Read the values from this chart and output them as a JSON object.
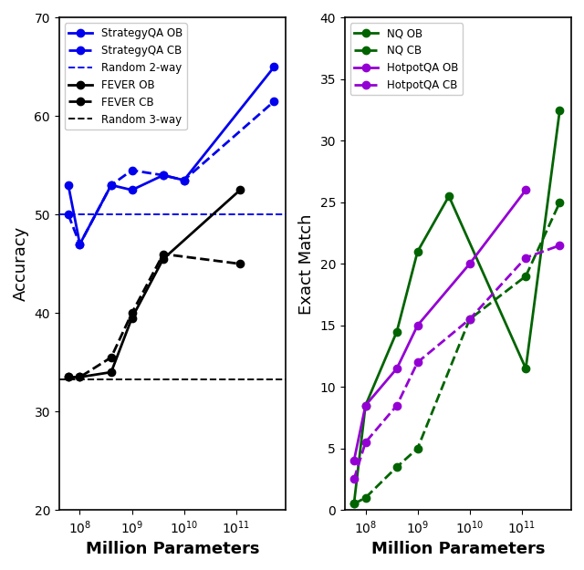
{
  "x_params": [
    60000000.0,
    100000000.0,
    400000000.0,
    1000000000.0,
    4000000000.0,
    10000000000.0,
    120000000000.0,
    540000000000.0
  ],
  "strategyqa_ob": [
    53.0,
    47.0,
    53.0,
    52.5,
    54.0,
    53.5,
    null,
    65.0
  ],
  "strategyqa_cb": [
    50.0,
    47.0,
    53.0,
    54.5,
    54.0,
    53.5,
    null,
    61.5
  ],
  "random_2way": 50.0,
  "fever_ob": [
    33.5,
    33.5,
    34.0,
    39.5,
    45.5,
    null,
    52.5,
    null
  ],
  "fever_cb": [
    33.5,
    33.5,
    35.5,
    40.0,
    46.0,
    null,
    45.0,
    null
  ],
  "random_3way": 33.3,
  "nq_ob": [
    0.5,
    8.5,
    14.5,
    21.0,
    25.5,
    null,
    11.5,
    32.5
  ],
  "nq_cb": [
    0.5,
    1.0,
    3.5,
    5.0,
    null,
    15.5,
    19.0,
    25.0
  ],
  "hotpotqa_ob": [
    4.0,
    8.5,
    11.5,
    15.0,
    null,
    20.0,
    26.0,
    null
  ],
  "hotpotqa_cb": [
    2.5,
    5.5,
    8.5,
    12.0,
    null,
    15.5,
    20.5,
    21.5
  ],
  "blue_color": "#0000EE",
  "black_color": "#000000",
  "green_color": "#006400",
  "purple_color": "#9400D3",
  "left_ylim": [
    20,
    70
  ],
  "left_yticks": [
    20,
    30,
    40,
    50,
    60,
    70
  ],
  "right_ylim": [
    0,
    40
  ],
  "right_yticks": [
    0,
    5,
    10,
    15,
    20,
    25,
    30,
    35,
    40
  ],
  "xlabel": "Million Parameters",
  "left_ylabel": "Accuracy",
  "right_ylabel": "Exact Match",
  "markersize": 6,
  "linewidth": 2.0
}
